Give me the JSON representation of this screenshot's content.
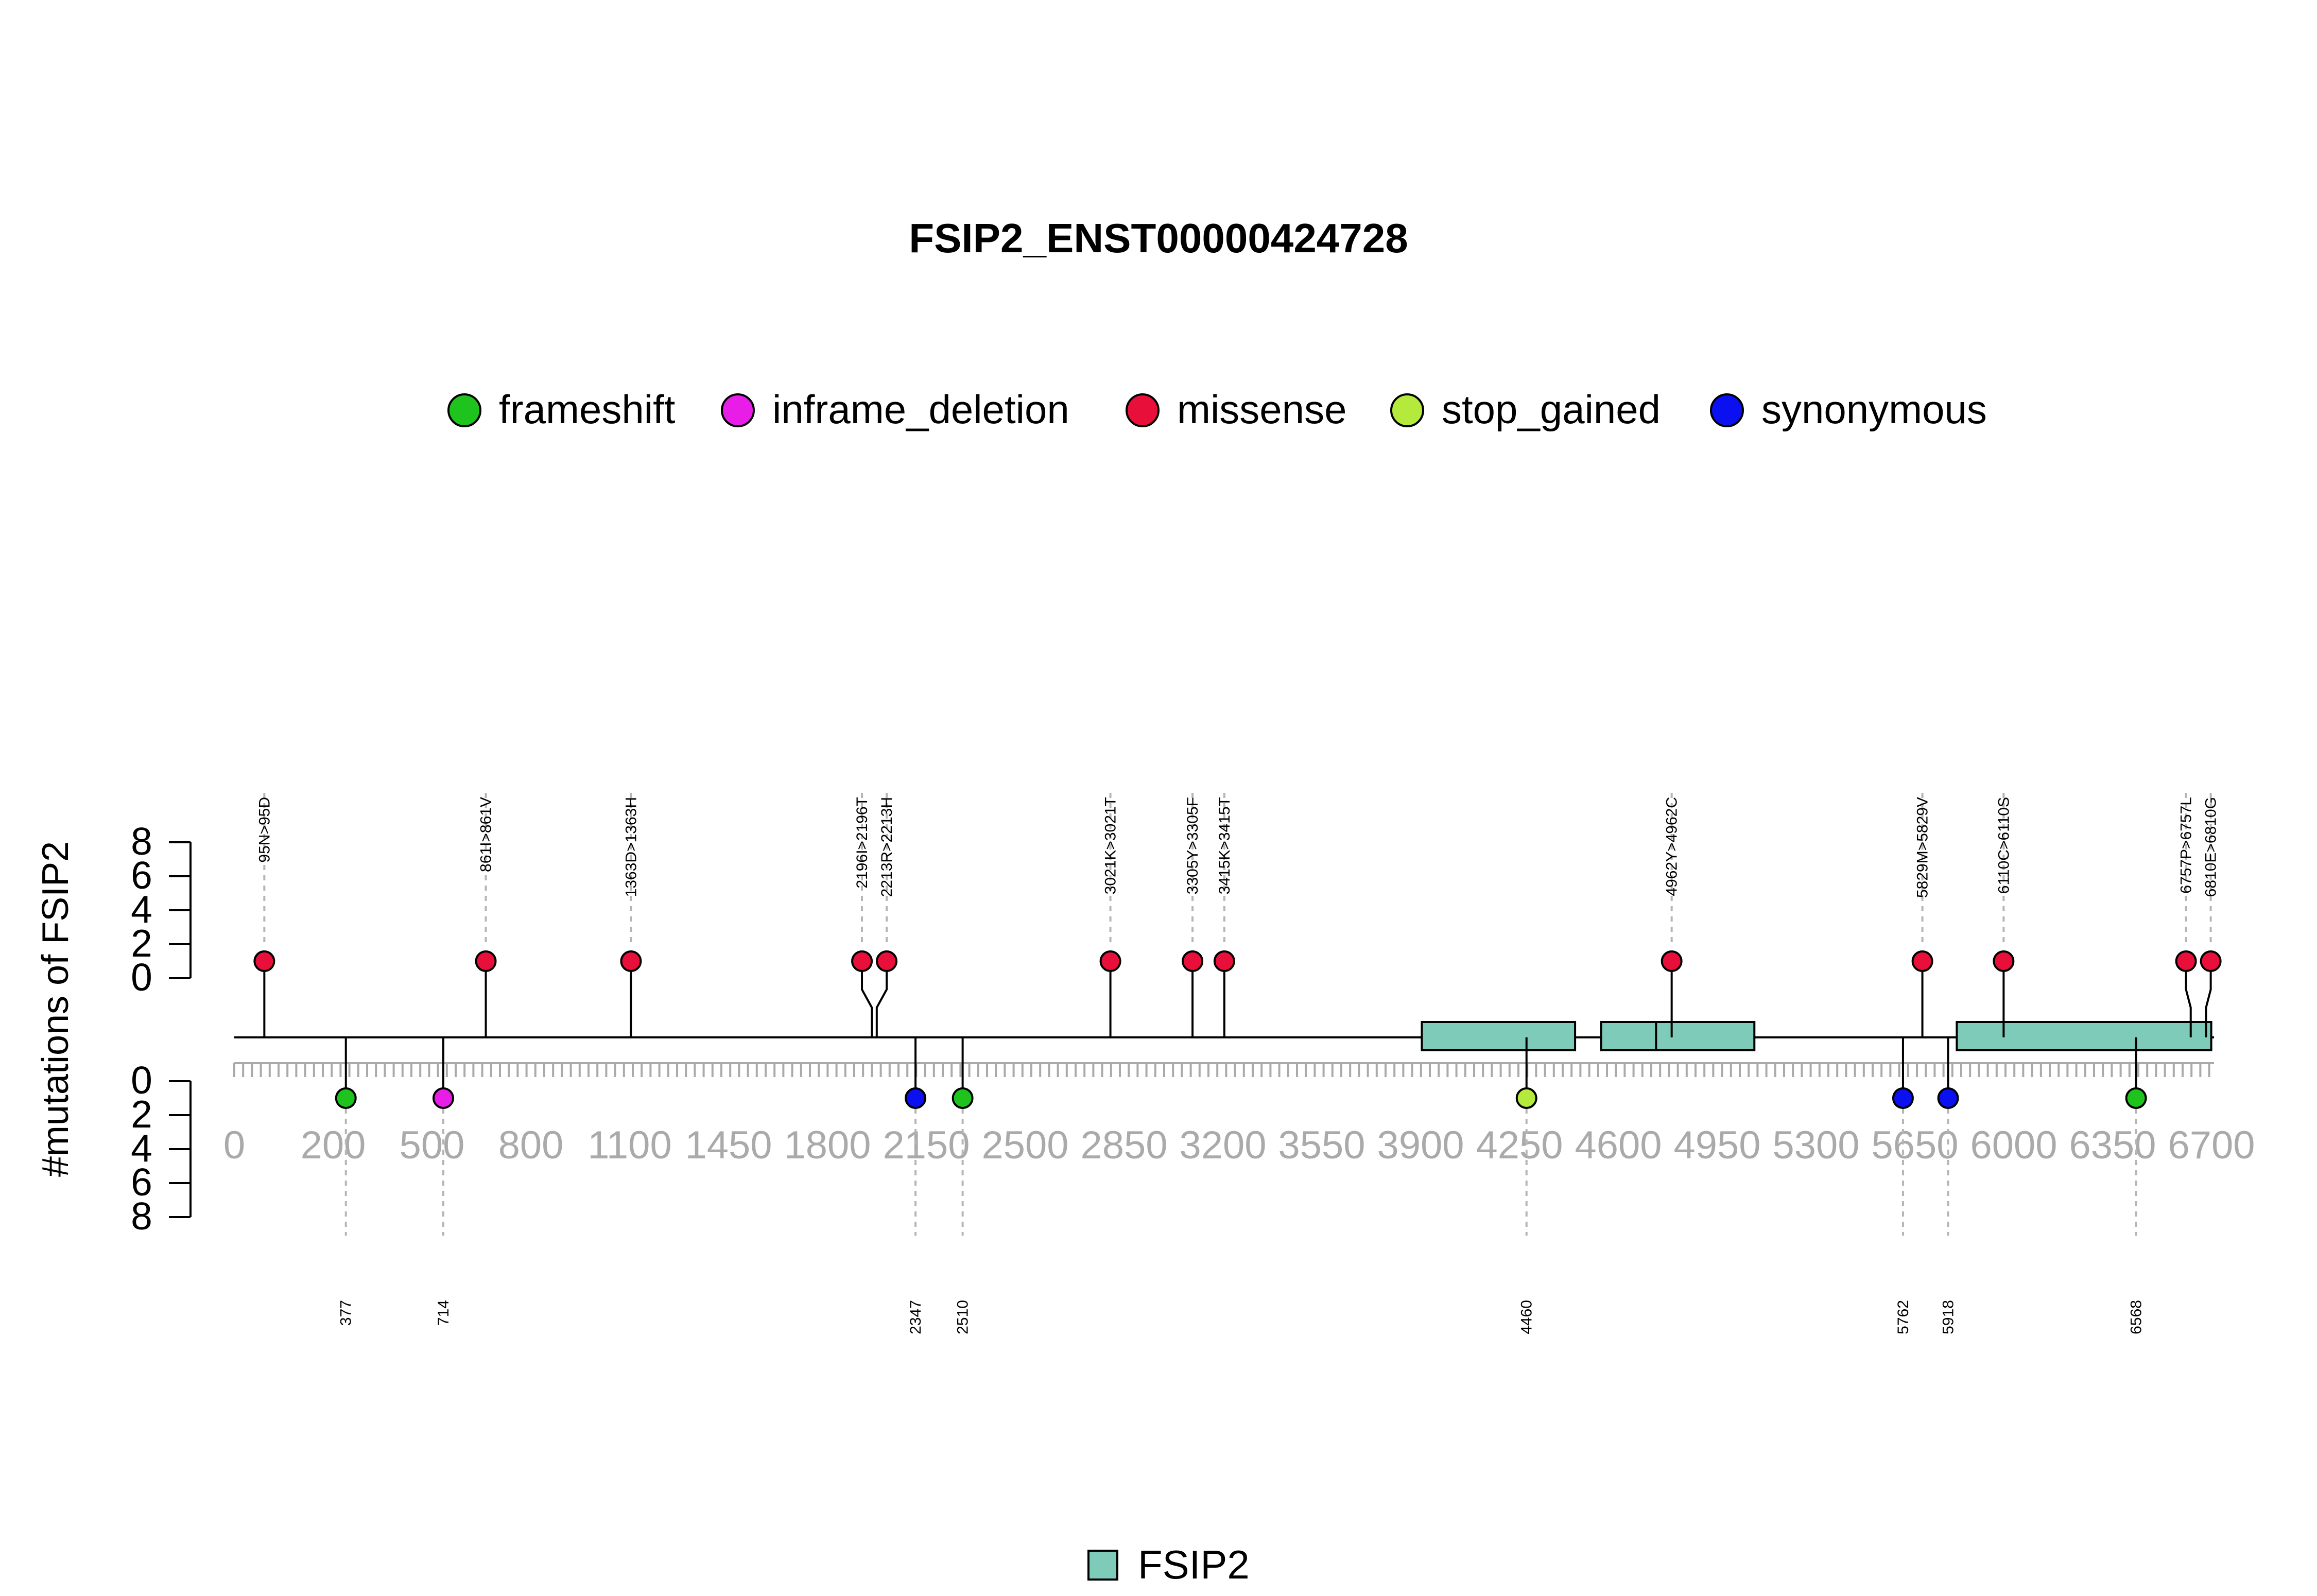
{
  "chart_data": {
    "type": "lollipop",
    "title": "FSIP2_ENST00000424728",
    "ylabel": "#mutations of FSIP2",
    "y_ticks": [
      "0",
      "2",
      "4",
      "6",
      "8"
    ],
    "x_ticks": [
      "0",
      "200",
      "500",
      "800",
      "1100",
      "1450",
      "1800",
      "2150",
      "2500",
      "2850",
      "3200",
      "3550",
      "3900",
      "4250",
      "4600",
      "4950",
      "5300",
      "5650",
      "6000",
      "6350",
      "6700"
    ],
    "x_range": [
      0,
      6890
    ],
    "legend": [
      {
        "name": "frameshift",
        "color": "#1ec31e"
      },
      {
        "name": "inframe_deletion",
        "color": "#e81ee8"
      },
      {
        "name": "missense",
        "color": "#e8103a"
      },
      {
        "name": "stop_gained",
        "color": "#b4ea3c"
      },
      {
        "name": "synonymous",
        "color": "#0a10f0"
      }
    ],
    "domain_legend": [
      {
        "name": "FSIP2",
        "color": "#7ecbb9"
      }
    ],
    "domains": [
      {
        "name": "FSIP2",
        "start": 4098,
        "end": 4628
      },
      {
        "name": "FSIP2",
        "start": 4718,
        "end": 5028
      },
      {
        "name": "FSIP2",
        "start": 4908,
        "end": 5248
      },
      {
        "name": "FSIP2",
        "start": 5948,
        "end": 6828
      }
    ],
    "upper_mutations": [
      {
        "label": "95N>95D",
        "position": 95,
        "count": 1,
        "type": "missense"
      },
      {
        "label": "861I>861V",
        "position": 861,
        "count": 1,
        "type": "missense"
      },
      {
        "label": "1363D>1363H",
        "position": 1363,
        "count": 1,
        "type": "missense"
      },
      {
        "label": "2196I>2196T",
        "position": 2196,
        "count": 1,
        "type": "missense"
      },
      {
        "label": "2213R>2213H",
        "position": 2213,
        "count": 1,
        "type": "missense"
      },
      {
        "label": "3021K>3021T",
        "position": 3021,
        "count": 1,
        "type": "missense"
      },
      {
        "label": "3305Y>3305F",
        "position": 3305,
        "count": 1,
        "type": "missense"
      },
      {
        "label": "3415K>3415T",
        "position": 3415,
        "count": 1,
        "type": "missense"
      },
      {
        "label": "4962Y>4962C",
        "position": 4962,
        "count": 1,
        "type": "missense"
      },
      {
        "label": "5829M>5829V",
        "position": 5829,
        "count": 1,
        "type": "missense"
      },
      {
        "label": "6110C>6110S",
        "position": 6110,
        "count": 1,
        "type": "missense"
      },
      {
        "label": "6757P>6757L",
        "position": 6757,
        "count": 1,
        "type": "missense"
      },
      {
        "label": "6810E>6810G",
        "position": 6810,
        "count": 1,
        "type": "missense"
      }
    ],
    "lower_mutations": [
      {
        "label": "377",
        "position": 377,
        "count": 1,
        "type": "frameshift"
      },
      {
        "label": "714",
        "position": 714,
        "count": 1,
        "type": "inframe_deletion"
      },
      {
        "label": "2347",
        "position": 2347,
        "count": 1,
        "type": "synonymous"
      },
      {
        "label": "2510",
        "position": 2510,
        "count": 1,
        "type": "frameshift"
      },
      {
        "label": "4460",
        "position": 4460,
        "count": 1,
        "type": "stop_gained"
      },
      {
        "label": "5762",
        "position": 5762,
        "count": 1,
        "type": "synonymous"
      },
      {
        "label": "5918",
        "position": 5918,
        "count": 1,
        "type": "synonymous"
      },
      {
        "label": "6568",
        "position": 6568,
        "count": 1,
        "type": "frameshift"
      }
    ]
  }
}
